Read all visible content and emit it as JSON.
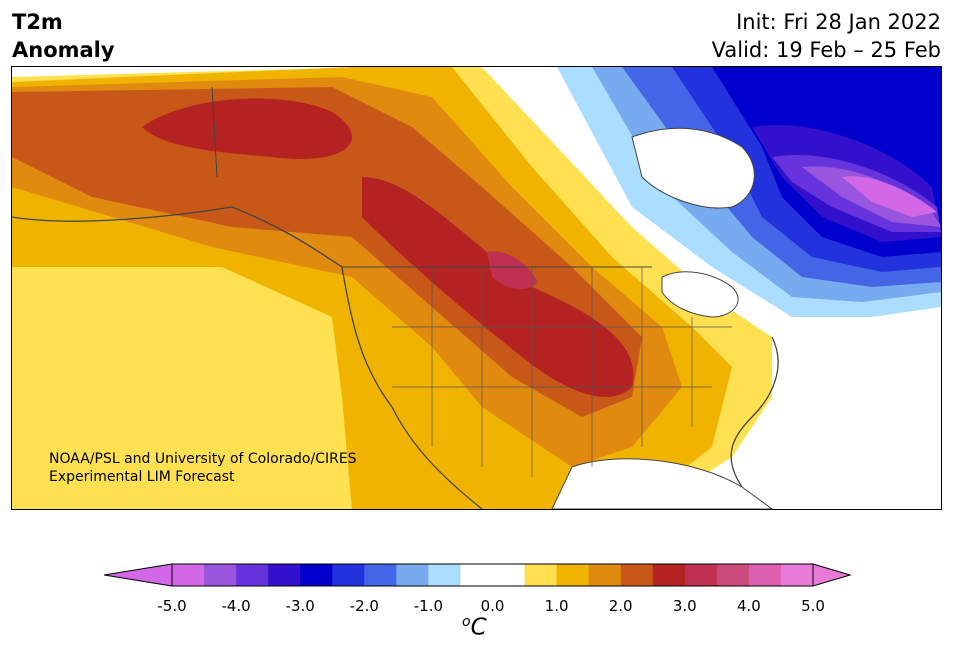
{
  "header": {
    "title_line1": "T2m",
    "title_line2": "Anomaly",
    "init": "Init: Fri 28 Jan 2022",
    "valid": "Valid: 19 Feb – 25 Feb"
  },
  "credit": {
    "line1": "NOAA/PSL and University of Colorado/CIRES",
    "line2": "Experimental LIM Forecast"
  },
  "colorbar": {
    "ticks": [
      "-5.0",
      "-4.0",
      "-3.0",
      "-2.0",
      "-1.0",
      "0.0",
      "1.0",
      "2.0",
      "3.0",
      "4.0",
      "5.0"
    ],
    "unit_base": "C",
    "unit_sup": "o",
    "colors": [
      "#d268e6",
      "#9955dd",
      "#6633dd",
      "#3311cc",
      "#0000cc",
      "#2233dd",
      "#4466e6",
      "#77aaee",
      "#aaddff",
      "#ffffff",
      "#ffffff",
      "#ffe050",
      "#f0b400",
      "#e08a10",
      "#c85818",
      "#b42222",
      "#c03050",
      "#cc4a7a",
      "#dd60b0",
      "#e87ad8"
    ],
    "under_color": "#d268e6",
    "over_color": "#e87ad8"
  },
  "map": {
    "region": "North America",
    "anomaly_pattern": "warm anomalies over Alaska, western Canada and central US; cold anomalies over eastern Canada"
  }
}
